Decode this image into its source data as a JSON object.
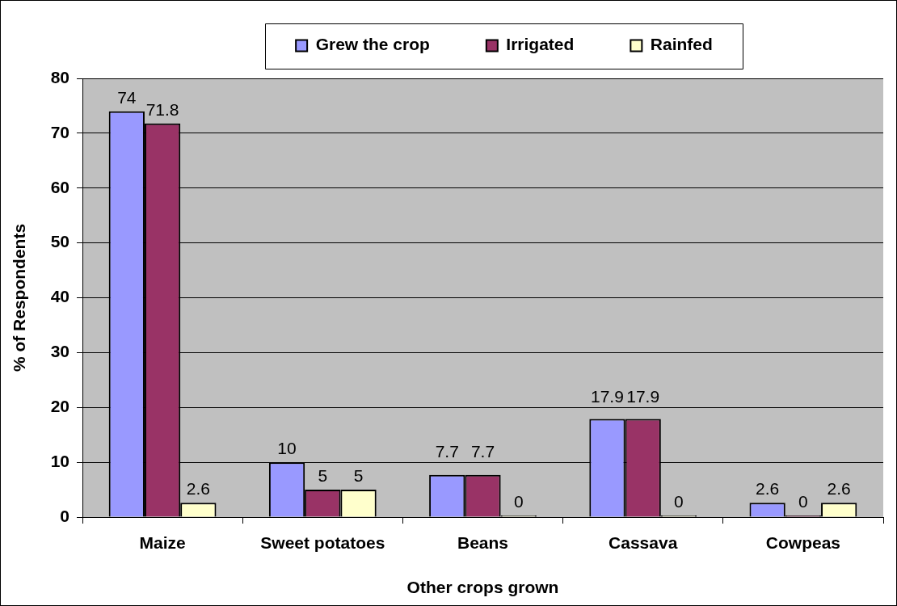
{
  "chart_data": {
    "type": "bar",
    "categories": [
      "Maize",
      "Sweet potatoes",
      "Beans",
      "Cassava",
      "Cowpeas"
    ],
    "series": [
      {
        "name": "Grew the crop",
        "color": "#9999ff",
        "values": [
          74,
          10,
          7.7,
          17.9,
          2.6
        ]
      },
      {
        "name": "Irrigated",
        "color": "#993366",
        "values": [
          71.8,
          5,
          7.7,
          17.9,
          0
        ]
      },
      {
        "name": "Rainfed",
        "color": "#ffffcc",
        "values": [
          2.6,
          5,
          0,
          0,
          2.6
        ]
      }
    ],
    "xlabel": "Other crops grown",
    "ylabel": "% of Respondents",
    "ylim": [
      0,
      80
    ],
    "yticks": [
      0,
      10,
      20,
      30,
      40,
      50,
      60,
      70,
      80
    ],
    "grid": "y",
    "legend": "top",
    "data_labels": true
  }
}
